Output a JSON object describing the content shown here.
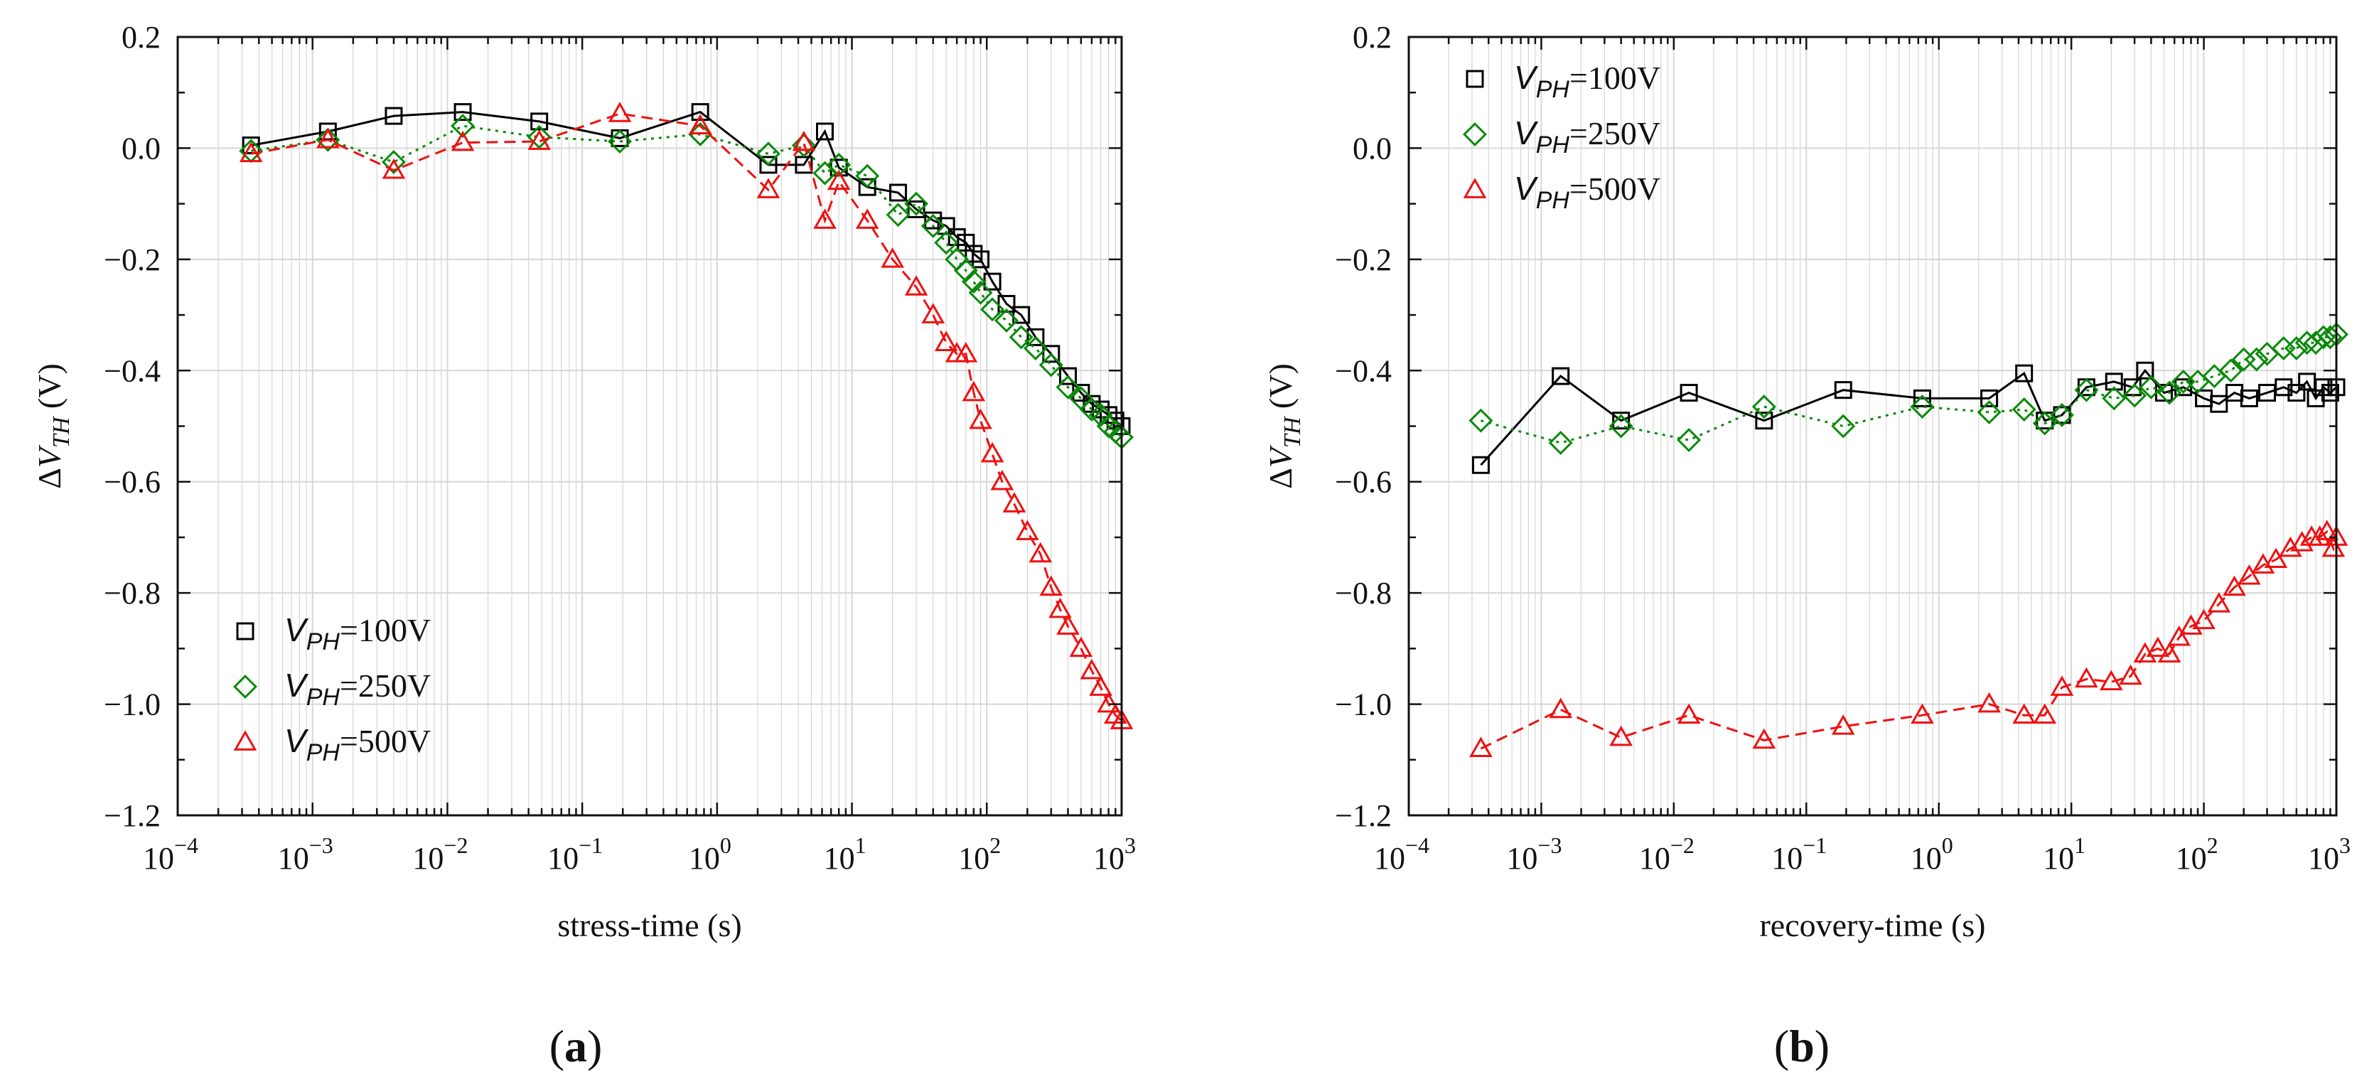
{
  "colors": {
    "series_100": "#000000",
    "series_250": "#0a8a0a",
    "series_500": "#ee1111",
    "grid": "#d6d6d6",
    "axis": "#111111"
  },
  "chart_data": [
    {
      "type": "scatter",
      "panel_label": "(a)",
      "panel_letter": "a",
      "xscale": "log",
      "xlabel": "stress-time (s)",
      "ylabel": {
        "prefix": "ΔV",
        "subscript": "TH",
        "suffix": " (V)"
      },
      "xlim": [
        0.0001,
        1000
      ],
      "ylim": [
        -1.2,
        0.2
      ],
      "x_ticks": [
        {
          "base": "10",
          "exp": "−4"
        },
        {
          "base": "10",
          "exp": "−3"
        },
        {
          "base": "10",
          "exp": "−2"
        },
        {
          "base": "10",
          "exp": "−1"
        },
        {
          "base": "10",
          "exp": "0"
        },
        {
          "base": "10",
          "exp": "1"
        },
        {
          "base": "10",
          "exp": "2"
        },
        {
          "base": "10",
          "exp": "3"
        }
      ],
      "y_ticks": [
        "0.2",
        "0.0",
        "−0.2",
        "−0.4",
        "−0.6",
        "−0.8",
        "−1.0",
        "−1.2"
      ],
      "grid": true,
      "legend_position": "bottom-left",
      "series": [
        {
          "name": "V_PH=100V",
          "legend": {
            "v": "V",
            "sub": "PH",
            "rest": "=100V"
          },
          "marker": "square",
          "line": "solid",
          "color": "#000000",
          "x": [
            0.00035,
            0.0013,
            0.004,
            0.013,
            0.048,
            0.19,
            0.75,
            2.4,
            4.4,
            6.3,
            8.0,
            13,
            22,
            30,
            40,
            50,
            60,
            70,
            80,
            90,
            110,
            140,
            180,
            230,
            300,
            400,
            500,
            600,
            700,
            800,
            900,
            1000
          ],
          "y": [
            0.005,
            0.03,
            0.058,
            0.065,
            0.048,
            0.018,
            0.065,
            -0.03,
            -0.03,
            0.03,
            -0.035,
            -0.07,
            -0.08,
            -0.11,
            -0.13,
            -0.14,
            -0.16,
            -0.17,
            -0.19,
            -0.2,
            -0.24,
            -0.28,
            -0.3,
            -0.34,
            -0.37,
            -0.41,
            -0.44,
            -0.46,
            -0.47,
            -0.48,
            -0.49,
            -0.5
          ]
        },
        {
          "name": "V_PH=250V",
          "legend": {
            "v": "V",
            "sub": "PH",
            "rest": "=250V"
          },
          "marker": "diamond",
          "line": "dotted",
          "color": "#0a8a0a",
          "x": [
            0.00035,
            0.0013,
            0.004,
            0.013,
            0.048,
            0.19,
            0.75,
            2.4,
            4.4,
            6.3,
            8.0,
            13,
            22,
            30,
            40,
            50,
            60,
            70,
            80,
            90,
            110,
            140,
            180,
            230,
            300,
            400,
            500,
            600,
            700,
            800,
            900,
            1000
          ],
          "y": [
            -0.005,
            0.015,
            -0.025,
            0.04,
            0.02,
            0.012,
            0.025,
            -0.01,
            0.005,
            -0.045,
            -0.03,
            -0.05,
            -0.12,
            -0.1,
            -0.14,
            -0.17,
            -0.2,
            -0.22,
            -0.24,
            -0.26,
            -0.29,
            -0.31,
            -0.34,
            -0.36,
            -0.39,
            -0.43,
            -0.45,
            -0.47,
            -0.48,
            -0.5,
            -0.51,
            -0.52
          ]
        },
        {
          "name": "V_PH=500V",
          "legend": {
            "v": "V",
            "sub": "PH",
            "rest": "=500V"
          },
          "marker": "triangle",
          "line": "dashed",
          "color": "#ee1111",
          "x": [
            0.00035,
            0.0013,
            0.004,
            0.013,
            0.048,
            0.19,
            0.75,
            2.4,
            4.4,
            6.3,
            8.0,
            13,
            20,
            30,
            40,
            50,
            60,
            70,
            80,
            90,
            110,
            130,
            160,
            200,
            250,
            300,
            350,
            400,
            500,
            600,
            700,
            800,
            900,
            1000
          ],
          "y": [
            -0.01,
            0.015,
            -0.04,
            0.01,
            0.012,
            0.062,
            0.04,
            -0.075,
            0.01,
            -0.13,
            -0.06,
            -0.13,
            -0.2,
            -0.25,
            -0.3,
            -0.35,
            -0.37,
            -0.37,
            -0.44,
            -0.49,
            -0.55,
            -0.6,
            -0.64,
            -0.69,
            -0.73,
            -0.79,
            -0.83,
            -0.86,
            -0.9,
            -0.94,
            -0.97,
            -1.0,
            -1.02,
            -1.03
          ]
        }
      ]
    },
    {
      "type": "scatter",
      "panel_label": "(b)",
      "panel_letter": "b",
      "xscale": "log",
      "xlabel": "recovery-time (s)",
      "ylabel": {
        "prefix": "ΔV",
        "subscript": "TH",
        "suffix": " (V)"
      },
      "xlim": [
        0.0001,
        1000
      ],
      "ylim": [
        -1.2,
        0.2
      ],
      "x_ticks": [
        {
          "base": "10",
          "exp": "−4"
        },
        {
          "base": "10",
          "exp": "−3"
        },
        {
          "base": "10",
          "exp": "−2"
        },
        {
          "base": "10",
          "exp": "−1"
        },
        {
          "base": "10",
          "exp": "0"
        },
        {
          "base": "10",
          "exp": "1"
        },
        {
          "base": "10",
          "exp": "2"
        },
        {
          "base": "10",
          "exp": "3"
        }
      ],
      "y_ticks": [
        "0.2",
        "0.0",
        "−0.2",
        "−0.4",
        "−0.6",
        "−0.8",
        "−1.0",
        "−1.2"
      ],
      "grid": true,
      "legend_position": "top-left",
      "series": [
        {
          "name": "V_PH=100V",
          "legend": {
            "v": "V",
            "sub": "PH",
            "rest": "=100V"
          },
          "marker": "square",
          "line": "solid",
          "color": "#000000",
          "x": [
            0.00035,
            0.0014,
            0.004,
            0.013,
            0.048,
            0.19,
            0.75,
            2.4,
            4.4,
            6.3,
            8.5,
            13,
            21,
            29,
            36,
            50,
            70,
            100,
            130,
            170,
            220,
            300,
            400,
            500,
            600,
            700,
            800,
            900,
            1000
          ],
          "y": [
            -0.57,
            -0.41,
            -0.49,
            -0.44,
            -0.49,
            -0.435,
            -0.45,
            -0.45,
            -0.405,
            -0.49,
            -0.48,
            -0.43,
            -0.42,
            -0.43,
            -0.4,
            -0.44,
            -0.43,
            -0.45,
            -0.46,
            -0.44,
            -0.45,
            -0.44,
            -0.43,
            -0.44,
            -0.42,
            -0.45,
            -0.43,
            -0.44,
            -0.43
          ]
        },
        {
          "name": "V_PH=250V",
          "legend": {
            "v": "V",
            "sub": "PH",
            "rest": "=250V"
          },
          "marker": "diamond",
          "line": "dotted",
          "color": "#0a8a0a",
          "x": [
            0.00035,
            0.0014,
            0.004,
            0.013,
            0.048,
            0.19,
            0.75,
            2.4,
            4.4,
            6.3,
            8.5,
            13,
            21,
            30,
            40,
            55,
            70,
            90,
            120,
            160,
            200,
            250,
            300,
            400,
            500,
            600,
            700,
            800,
            900,
            1000
          ],
          "y": [
            -0.49,
            -0.53,
            -0.5,
            -0.525,
            -0.465,
            -0.5,
            -0.465,
            -0.475,
            -0.47,
            -0.495,
            -0.48,
            -0.435,
            -0.45,
            -0.445,
            -0.43,
            -0.44,
            -0.42,
            -0.42,
            -0.41,
            -0.4,
            -0.38,
            -0.38,
            -0.37,
            -0.36,
            -0.36,
            -0.35,
            -0.35,
            -0.34,
            -0.34,
            -0.335
          ]
        },
        {
          "name": "V_PH=500V",
          "legend": {
            "v": "V",
            "sub": "PH",
            "rest": "=500V"
          },
          "marker": "triangle",
          "line": "dashed",
          "color": "#ee1111",
          "x": [
            0.00035,
            0.0014,
            0.004,
            0.013,
            0.048,
            0.19,
            0.75,
            2.4,
            4.4,
            6.3,
            8.5,
            13,
            20,
            28,
            36,
            45,
            55,
            65,
            80,
            100,
            130,
            170,
            220,
            280,
            350,
            450,
            550,
            650,
            750,
            850,
            950,
            1000
          ],
          "y": [
            -1.08,
            -1.01,
            -1.06,
            -1.02,
            -1.065,
            -1.04,
            -1.02,
            -1.0,
            -1.02,
            -1.02,
            -0.97,
            -0.955,
            -0.96,
            -0.95,
            -0.91,
            -0.9,
            -0.91,
            -0.88,
            -0.86,
            -0.85,
            -0.82,
            -0.79,
            -0.77,
            -0.75,
            -0.74,
            -0.72,
            -0.71,
            -0.7,
            -0.7,
            -0.69,
            -0.72,
            -0.7
          ]
        }
      ]
    }
  ]
}
